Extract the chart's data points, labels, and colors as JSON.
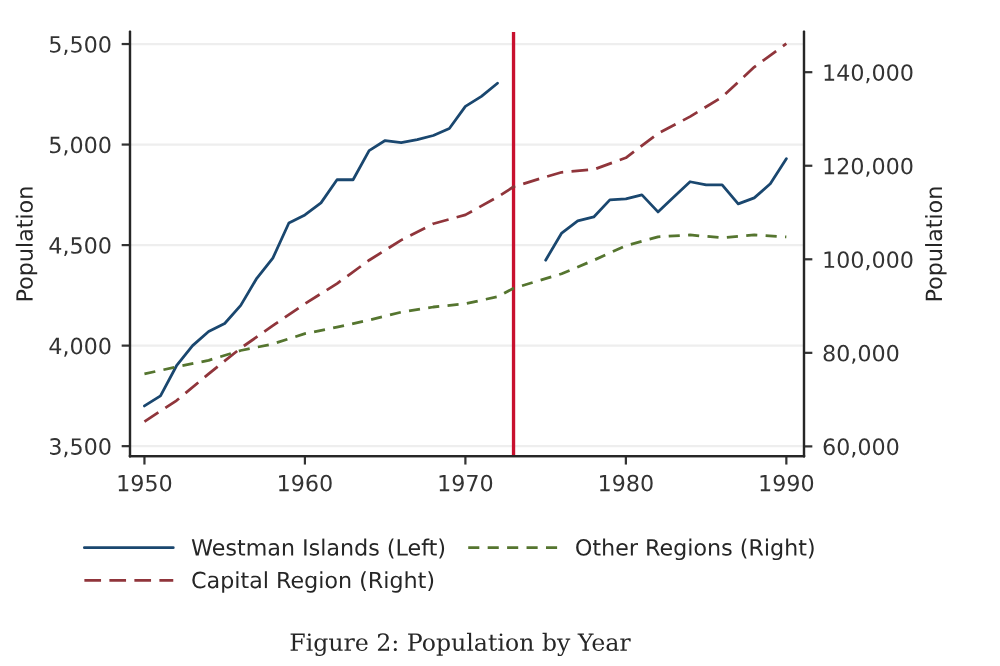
{
  "chart_data": {
    "type": "line",
    "ylabel": "Population",
    "y2label": "Population",
    "xlim": [
      1949.1,
      1991.1
    ],
    "xticks": [
      1950,
      1960,
      1970,
      1980,
      1990
    ],
    "ylim": [
      3450,
      5560
    ],
    "yticks": [
      {
        "value": 3500,
        "label": "3,500"
      },
      {
        "value": 4000,
        "label": "4,000"
      },
      {
        "value": 4500,
        "label": "4,500"
      },
      {
        "value": 5000,
        "label": "5,000"
      },
      {
        "value": 5500,
        "label": "5,500"
      }
    ],
    "y2lim": [
      57900,
      148600
    ],
    "y2ticks": [
      {
        "value": 60000,
        "label": "60,000"
      },
      {
        "value": 80000,
        "label": "80,000"
      },
      {
        "value": 100000,
        "label": "100,000"
      },
      {
        "value": 120000,
        "label": "120,000"
      },
      {
        "value": 140000,
        "label": "140,000"
      }
    ],
    "grid": "y",
    "legend": "bottom",
    "marker": "none",
    "ref_lines": [
      {
        "axis": "x",
        "value": 1973,
        "label": null,
        "color": "#c8102e"
      }
    ],
    "series": [
      {
        "name": "Westman Islands (Left)",
        "color": "#1a476f",
        "line_style": "solid",
        "x": [
          1950,
          1951,
          1952,
          1953,
          1954,
          1955,
          1956,
          1957,
          1958,
          1959,
          1960,
          1961,
          1962,
          1963,
          1964,
          1965,
          1966,
          1967,
          1968,
          1969,
          1970,
          1971,
          1972,
          1973,
          1974,
          1975,
          1976,
          1977,
          1978,
          1979,
          1980,
          1981,
          1982,
          1983,
          1984,
          1985,
          1986,
          1987,
          1988,
          1989,
          1990
        ],
        "values": [
          3700,
          3750,
          3900,
          4000,
          4070,
          4110,
          4200,
          4335,
          4435,
          4610,
          4650,
          4710,
          4825,
          4825,
          4970,
          5020,
          5010,
          5025,
          5045,
          5080,
          5190,
          5240,
          5305,
          null,
          null,
          4425,
          4560,
          4620,
          4640,
          4725,
          4730,
          4750,
          4665,
          4740,
          4815,
          4800,
          4800,
          4705,
          4735,
          4805,
          4930
        ]
      },
      {
        "name": "Capital Region (Right)",
        "color": "#90353b",
        "line_style": "dashed",
        "axis": "y2",
        "x": [
          1950,
          1952,
          1954,
          1956,
          1958,
          1960,
          1962,
          1964,
          1966,
          1968,
          1970,
          1972,
          1973,
          1975,
          1976,
          1978,
          1980,
          1982,
          1984,
          1986,
          1988,
          1990
        ],
        "values": [
          65300,
          69800,
          75500,
          81000,
          85800,
          90500,
          94800,
          99800,
          104100,
          107600,
          109500,
          113300,
          115500,
          117600,
          118600,
          119200,
          121700,
          126900,
          130500,
          134700,
          141100,
          146100
        ]
      },
      {
        "name": "Other Regions (Right)",
        "color": "#55752f",
        "line_style": "dashed",
        "axis": "y2",
        "x": [
          1950,
          1952,
          1954,
          1956,
          1958,
          1960,
          1962,
          1964,
          1966,
          1968,
          1970,
          1972,
          1973,
          1976,
          1978,
          1980,
          1982,
          1984,
          1986,
          1988,
          1990
        ],
        "values": [
          75500,
          77000,
          78400,
          80500,
          81900,
          84100,
          85500,
          87000,
          88700,
          89800,
          90500,
          92000,
          93800,
          96900,
          99800,
          102900,
          104800,
          105200,
          104600,
          105200,
          104800
        ]
      }
    ],
    "annotations": [
      "Figure 2: Population by Year"
    ]
  }
}
